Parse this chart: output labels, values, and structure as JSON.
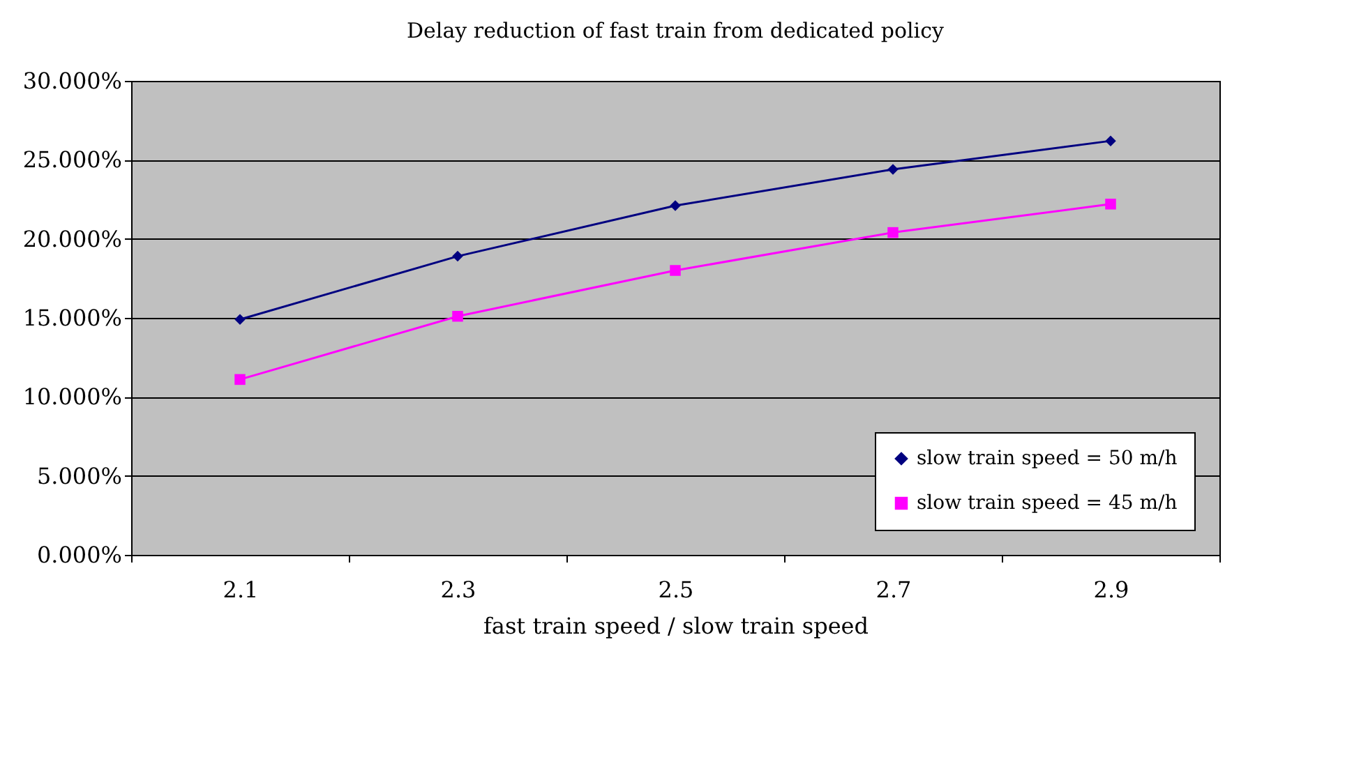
{
  "chart_data": {
    "type": "line",
    "title": "Delay reduction of fast train from dedicated policy",
    "xlabel": "fast train speed / slow train speed",
    "categories": [
      "2.1",
      "2.3",
      "2.5",
      "2.7",
      "2.9"
    ],
    "series": [
      {
        "name": "slow train speed = 50 m/h",
        "color": "#000080",
        "marker": "diamond",
        "values": [
          14.9,
          18.9,
          22.1,
          24.4,
          26.2
        ]
      },
      {
        "name": "slow train speed = 45 m/h",
        "color": "#ff00ff",
        "marker": "square",
        "values": [
          11.1,
          15.1,
          18.0,
          20.4,
          22.2
        ]
      }
    ],
    "ylim": [
      0,
      30
    ],
    "yticks": [
      {
        "value": 0,
        "label": "0.000%"
      },
      {
        "value": 5,
        "label": "5.000%"
      },
      {
        "value": 10,
        "label": "10.000%"
      },
      {
        "value": 15,
        "label": "15.000%"
      },
      {
        "value": 20,
        "label": "20.000%"
      },
      {
        "value": 25,
        "label": "25.000%"
      },
      {
        "value": 30,
        "label": "30.000%"
      }
    ],
    "grid": "y",
    "legend": "bottom right",
    "line_style": "solid"
  }
}
